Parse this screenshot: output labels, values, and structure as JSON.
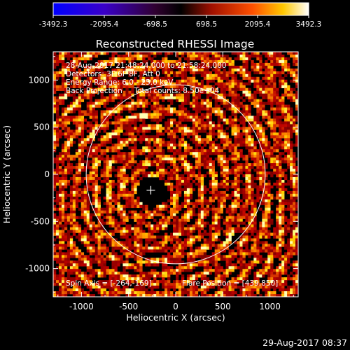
{
  "chart_data": {
    "type": "heatmap",
    "title": "Reconstructed RHESSI Image",
    "xlabel": "Heliocentric X (arcsec)",
    "ylabel": "Heliocentric Y (arcsec)",
    "xlim": [
      -1300,
      1300
    ],
    "ylim": [
      -1300,
      1300
    ],
    "xticks": [
      -1000,
      -500,
      0,
      500,
      1000
    ],
    "yticks": [
      -1000,
      -500,
      0,
      500,
      1000
    ],
    "colorbar": {
      "min": -3492.3,
      "max": 3492.3,
      "tick_labels": [
        "-3492.3",
        "-2095.4",
        "-698.5",
        "698.5",
        "2095.4",
        "3492.3"
      ]
    },
    "solar_disk": {
      "center": [
        0,
        0
      ],
      "radius": 950
    },
    "flare_marker": {
      "x": -264,
      "y": -169
    },
    "annotations": {
      "time_range": "28-Aug-2017 21:48:24.000 to 21:58:24.000",
      "detectors": "Detectors: 3F 6F 8F, Att 0",
      "energy_range": "Energy Range: 6.0 - 25.0 keV",
      "method": "Back Projection     Total counts: 8.50e+04",
      "spin_axis": "Spin Axis = [-264,-169]",
      "flare_position": "Flare Position = [439,850]"
    },
    "timestamp": "29-Aug-2017 08:37"
  }
}
